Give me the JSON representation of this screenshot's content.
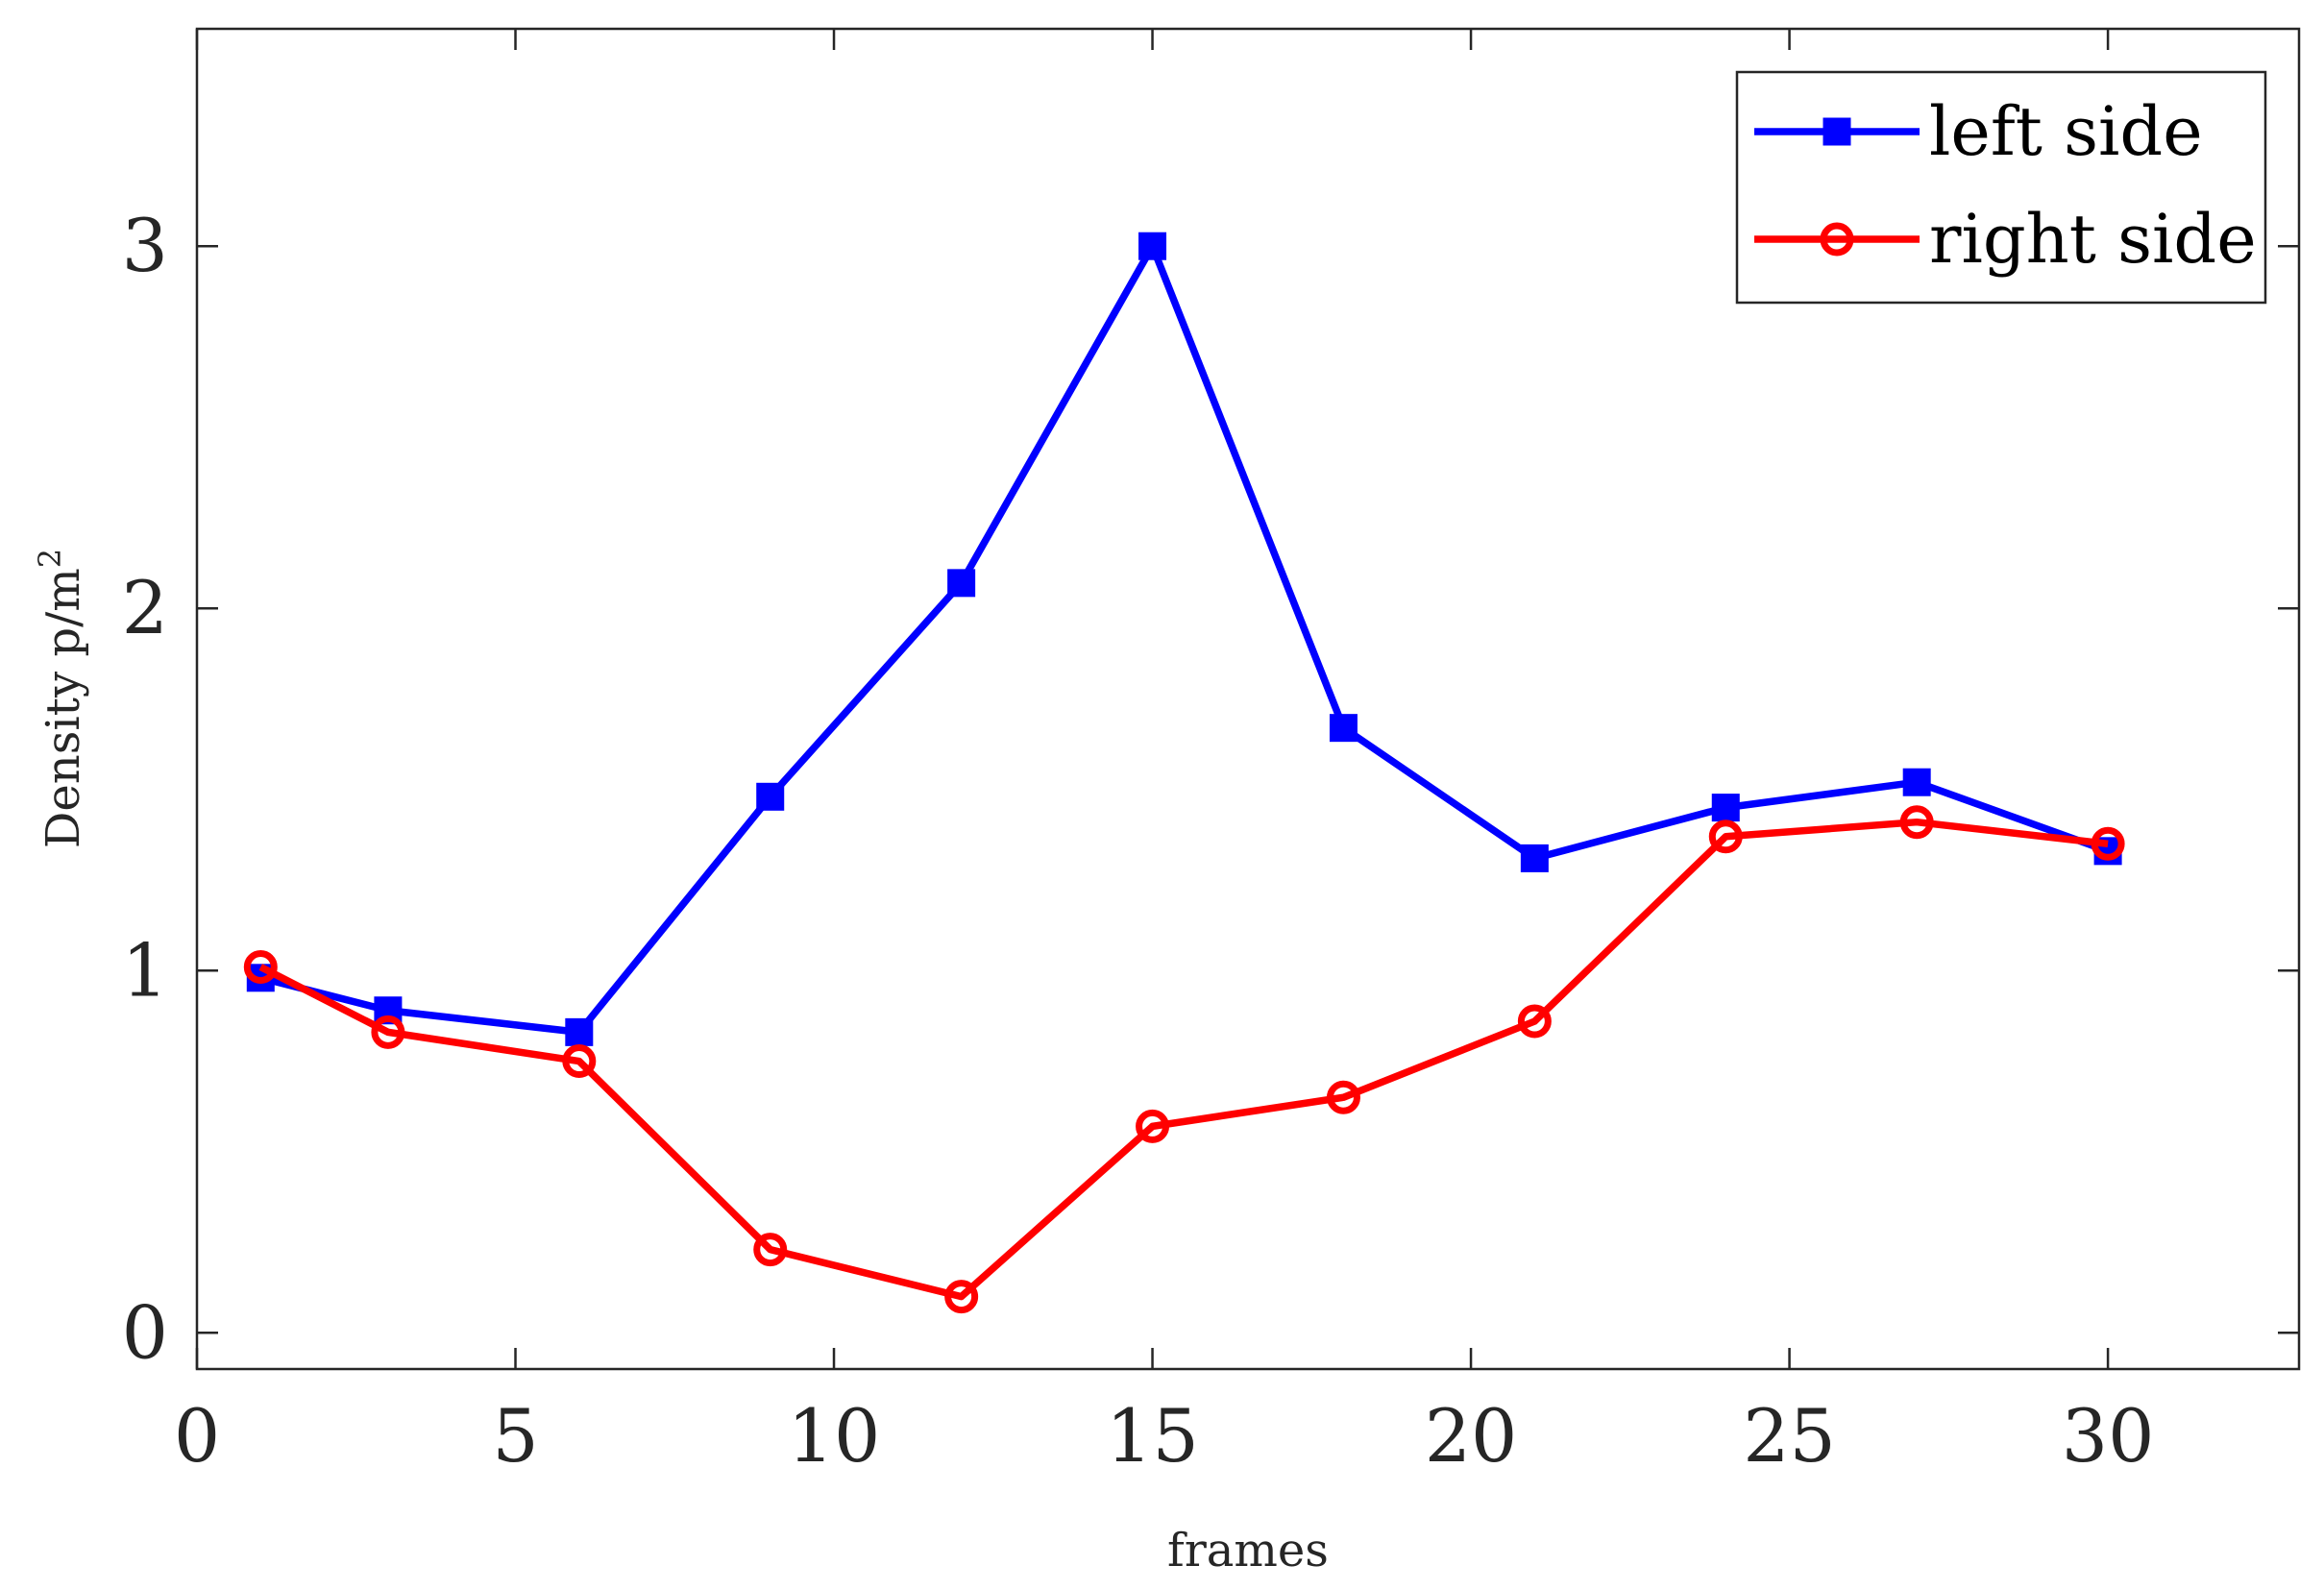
{
  "chart_data": {
    "type": "line",
    "title": "",
    "xlabel": "frames",
    "ylabel": {
      "text": "Density p/m",
      "superscript": "2"
    },
    "xlim": [
      0,
      33
    ],
    "ylim": [
      -0.1,
      3.6
    ],
    "xticks": [
      0,
      5,
      10,
      15,
      20,
      25,
      30
    ],
    "xtick_labels": [
      "0",
      "5",
      "10",
      "15",
      "20",
      "25",
      "30"
    ],
    "yticks": [
      0,
      1,
      2,
      3
    ],
    "ytick_labels": [
      "0",
      "1",
      "2",
      "3"
    ],
    "grid": false,
    "legend_position": "top-right",
    "x": [
      1,
      3,
      6,
      9,
      12,
      15,
      18,
      21,
      24,
      27,
      30
    ],
    "series": [
      {
        "name": "left side",
        "color": "#0000ff",
        "marker": "square",
        "values": [
          0.98,
          0.89,
          0.83,
          1.48,
          2.07,
          3.0,
          1.67,
          1.31,
          1.45,
          1.52,
          1.33
        ]
      },
      {
        "name": "right side",
        "color": "#ff0000",
        "marker": "circle",
        "values": [
          1.01,
          0.83,
          0.75,
          0.23,
          0.1,
          0.57,
          0.65,
          0.86,
          1.37,
          1.41,
          1.35
        ]
      }
    ]
  }
}
